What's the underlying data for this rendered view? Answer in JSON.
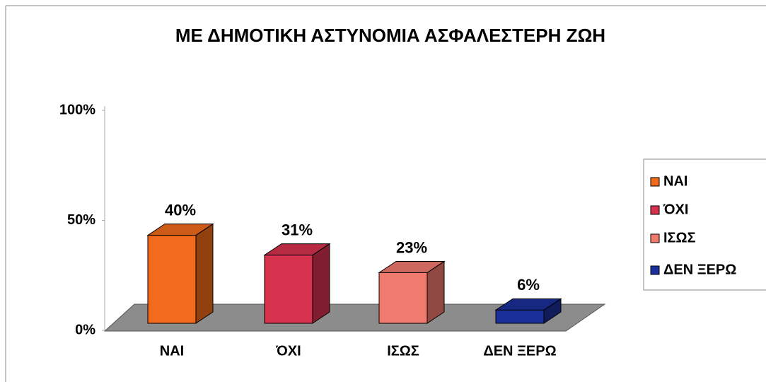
{
  "chart_data": {
    "type": "bar3d",
    "title": "ΜΕ ΔΗΜΟΤΙΚΗ ΑΣΤΥΝΟΜΙΑ ΑΣΦΑΛΕΣΤΕΡΗ ΖΩΗ",
    "categories": [
      "ΝΑΙ",
      "ΌΧΙ",
      "ΙΣΩΣ",
      "ΔΕΝ ΞΕΡΩ"
    ],
    "values": [
      40,
      31,
      23,
      6
    ],
    "value_labels": [
      "40%",
      "31%",
      "23%",
      "6%"
    ],
    "colors": [
      "#f26a1b",
      "#d6324e",
      "#f07a6e",
      "#1b2f9a"
    ],
    "ylim": [
      0,
      100
    ],
    "yticks": [
      {
        "value": 0,
        "label": "0%"
      },
      {
        "value": 50,
        "label": "50%"
      },
      {
        "value": 100,
        "label": "100%"
      }
    ],
    "legend": "right"
  }
}
